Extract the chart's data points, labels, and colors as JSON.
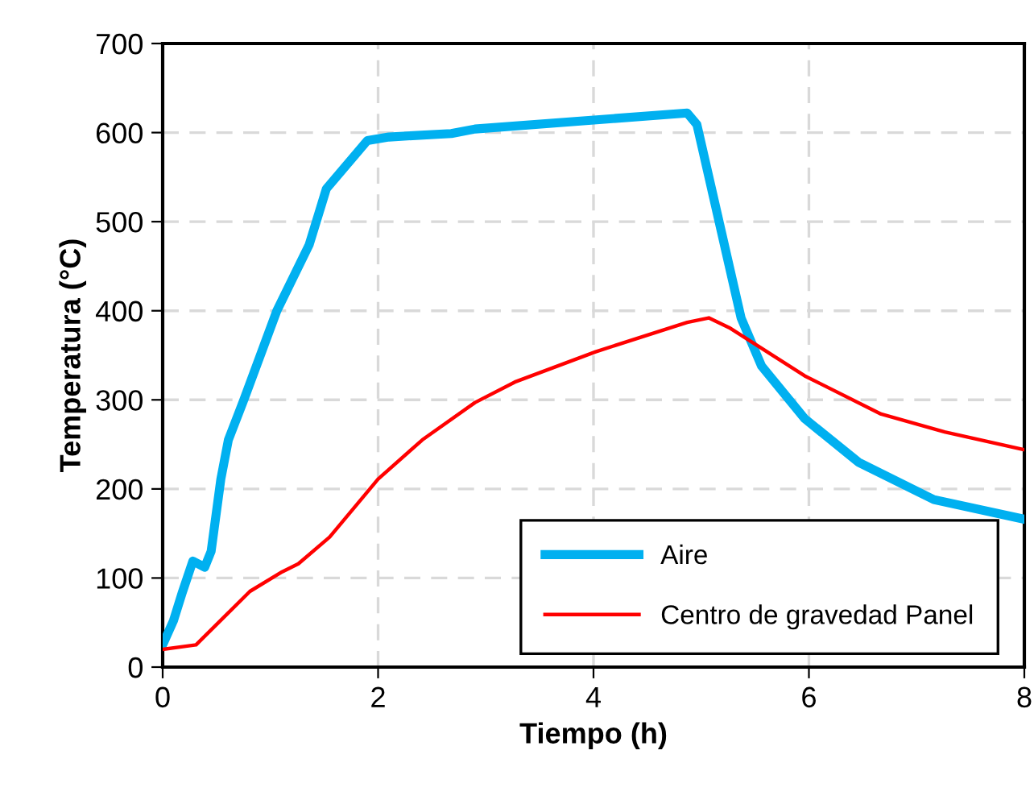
{
  "chart_data": {
    "type": "line",
    "xlabel": "Tiempo (h)",
    "ylabel": "Temperatura (°C)",
    "xlim": [
      0,
      8
    ],
    "xticks": [
      0,
      2,
      4,
      6,
      8
    ],
    "ylim": [
      0,
      700
    ],
    "yticks": [
      0,
      100,
      200,
      300,
      400,
      500,
      600,
      700
    ],
    "grid": true,
    "legend": "bottom right",
    "line_style": "solid",
    "marker": "none",
    "series": [
      {
        "name": "Aire",
        "color": "#00b0f0",
        "x": [
          0,
          0.1,
          0.18,
          0.28,
          0.39,
          0.45,
          0.54,
          0.61,
          0.76,
          1.06,
          1.36,
          1.52,
          1.9,
          2.1,
          2.68,
          2.9,
          4.87,
          4.96,
          5.37,
          5.56,
          5.96,
          6.46,
          7.16,
          8.0
        ],
        "values": [
          25,
          52,
          83,
          119,
          112,
          130,
          211,
          255,
          302,
          400,
          474,
          537,
          591,
          595,
          599,
          604,
          622,
          609,
          392,
          338,
          279,
          230,
          188,
          166
        ]
      },
      {
        "name": "Centro de gravedad Panel",
        "color": "#ff0000",
        "x": [
          0,
          0.31,
          0.81,
          1.11,
          1.26,
          1.55,
          2.0,
          2.41,
          2.9,
          3.27,
          4.02,
          4.87,
          5.07,
          5.26,
          5.96,
          6.67,
          7.26,
          8.0
        ],
        "values": [
          20,
          25,
          85,
          107,
          116,
          146,
          211,
          255,
          297,
          320,
          354,
          387,
          392,
          381,
          327,
          284,
          264,
          244
        ]
      }
    ]
  }
}
